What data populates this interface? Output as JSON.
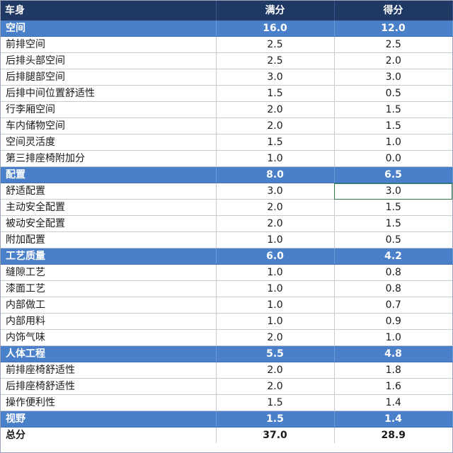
{
  "header": {
    "col1": "车身",
    "col2": "满分",
    "col3": "得分"
  },
  "sections": [
    {
      "name": "空间",
      "full": "16.0",
      "score": "12.0",
      "items": [
        {
          "name": "前排空间",
          "full": "2.5",
          "score": "2.5"
        },
        {
          "name": "后排头部空间",
          "full": "2.5",
          "score": "2.0"
        },
        {
          "name": "后排腿部空间",
          "full": "3.0",
          "score": "3.0"
        },
        {
          "name": "后排中间位置舒适性",
          "full": "1.5",
          "score": "0.5"
        },
        {
          "name": "行李厢空间",
          "full": "2.0",
          "score": "1.5"
        },
        {
          "name": "车内储物空间",
          "full": "2.0",
          "score": "1.5"
        },
        {
          "name": "空间灵活度",
          "full": "1.5",
          "score": "1.0"
        },
        {
          "name": "第三排座椅附加分",
          "full": "1.0",
          "score": "0.0"
        }
      ]
    },
    {
      "name": "配置",
      "full": "8.0",
      "score": "6.5",
      "items": [
        {
          "name": "舒适配置",
          "full": "3.0",
          "score": "3.0"
        },
        {
          "name": "主动安全配置",
          "full": "2.0",
          "score": "1.5"
        },
        {
          "name": "被动安全配置",
          "full": "2.0",
          "score": "1.5"
        },
        {
          "name": "附加配置",
          "full": "1.0",
          "score": "0.5"
        }
      ]
    },
    {
      "name": "工艺质量",
      "full": "6.0",
      "score": "4.2",
      "items": [
        {
          "name": "缝隙工艺",
          "full": "1.0",
          "score": "0.8"
        },
        {
          "name": "漆面工艺",
          "full": "1.0",
          "score": "0.8"
        },
        {
          "name": "内部做工",
          "full": "1.0",
          "score": "0.7"
        },
        {
          "name": "内部用料",
          "full": "1.0",
          "score": "0.9"
        },
        {
          "name": "内饰气味",
          "full": "2.0",
          "score": "1.0"
        }
      ]
    },
    {
      "name": "人体工程",
      "full": "5.5",
      "score": "4.8",
      "items": [
        {
          "name": "前排座椅舒适性",
          "full": "2.0",
          "score": "1.8"
        },
        {
          "name": "后排座椅舒适性",
          "full": "2.0",
          "score": "1.6"
        },
        {
          "name": "操作便利性",
          "full": "1.5",
          "score": "1.4"
        }
      ]
    },
    {
      "name": "视野",
      "full": "1.5",
      "score": "1.4",
      "items": []
    }
  ],
  "total": {
    "name": "总分",
    "full": "37.0",
    "score": "28.9"
  },
  "colors": {
    "header_bg": "#1f3864",
    "category_bg": "#4a7fc9",
    "selected_cell_border": "#2f7d4d"
  }
}
